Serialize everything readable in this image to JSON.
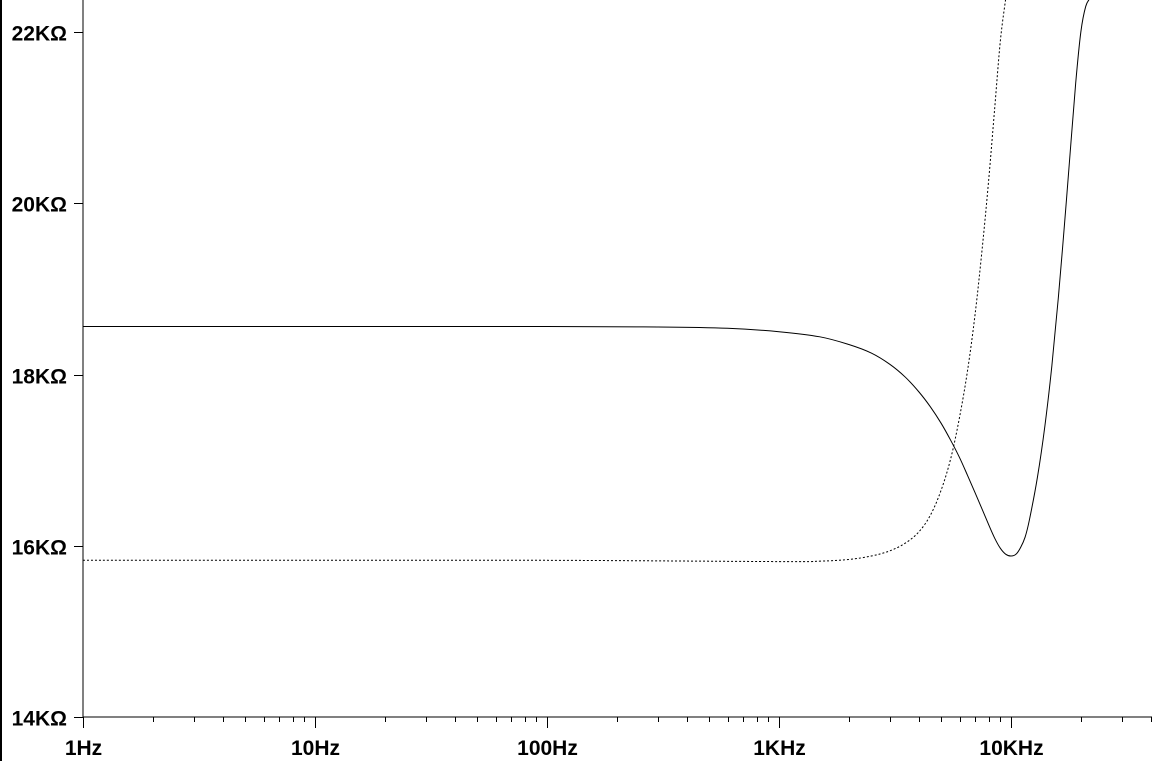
{
  "colors": {
    "background": "#ffffff",
    "axis": "#000000",
    "trace": "#000000"
  },
  "chart_data": {
    "type": "line",
    "title": "",
    "xlabel": "",
    "ylabel": "",
    "x_scale": "log",
    "x_range": [
      1,
      48000
    ],
    "y_range": [
      14000,
      22300
    ],
    "grid": false,
    "legend": "none",
    "x_ticks": [
      {
        "value": 1,
        "label": "1Hz"
      },
      {
        "value": 10,
        "label": "10Hz"
      },
      {
        "value": 100,
        "label": "100Hz"
      },
      {
        "value": 1000,
        "label": "1KHz"
      },
      {
        "value": 10000,
        "label": "10KHz"
      }
    ],
    "y_ticks": [
      {
        "value": 14000,
        "label": "14KΩ"
      },
      {
        "value": 16000,
        "label": "16KΩ"
      },
      {
        "value": 18000,
        "label": "18KΩ"
      },
      {
        "value": 20000,
        "label": "20KΩ"
      },
      {
        "value": 22000,
        "label": "22KΩ"
      }
    ],
    "series": [
      {
        "style": "solid",
        "x": [
          1,
          10,
          100,
          300,
          600,
          1000,
          1500,
          2000,
          2500,
          3000,
          3500,
          4000,
          4500,
          5000,
          5500,
          6000,
          6500,
          7000,
          7500,
          8000,
          8500,
          9000,
          9500,
          10000,
          10500,
          11000,
          11500,
          12000,
          13000,
          14000,
          15000,
          16000,
          17000,
          18000,
          19000,
          20000,
          21000,
          22000
        ],
        "y": [
          18560,
          18560,
          18560,
          18555,
          18540,
          18500,
          18440,
          18350,
          18250,
          18120,
          17970,
          17800,
          17620,
          17430,
          17230,
          17030,
          16820,
          16620,
          16430,
          16250,
          16090,
          15970,
          15900,
          15880,
          15900,
          15980,
          16100,
          16300,
          16800,
          17400,
          18100,
          18900,
          19750,
          20600,
          21400,
          22000,
          22300,
          22400
        ]
      },
      {
        "style": "dotted",
        "x": [
          1,
          10,
          100,
          1000,
          1500,
          2000,
          2500,
          3000,
          3500,
          4000,
          4500,
          5000,
          5500,
          6000,
          6500,
          7000,
          7500,
          8000,
          8500,
          9000,
          9500
        ],
        "y": [
          15830,
          15830,
          15830,
          15815,
          15820,
          15840,
          15880,
          15940,
          16030,
          16160,
          16360,
          16650,
          17020,
          17500,
          18050,
          18700,
          19450,
          20250,
          21100,
          21900,
          22400
        ]
      }
    ]
  }
}
